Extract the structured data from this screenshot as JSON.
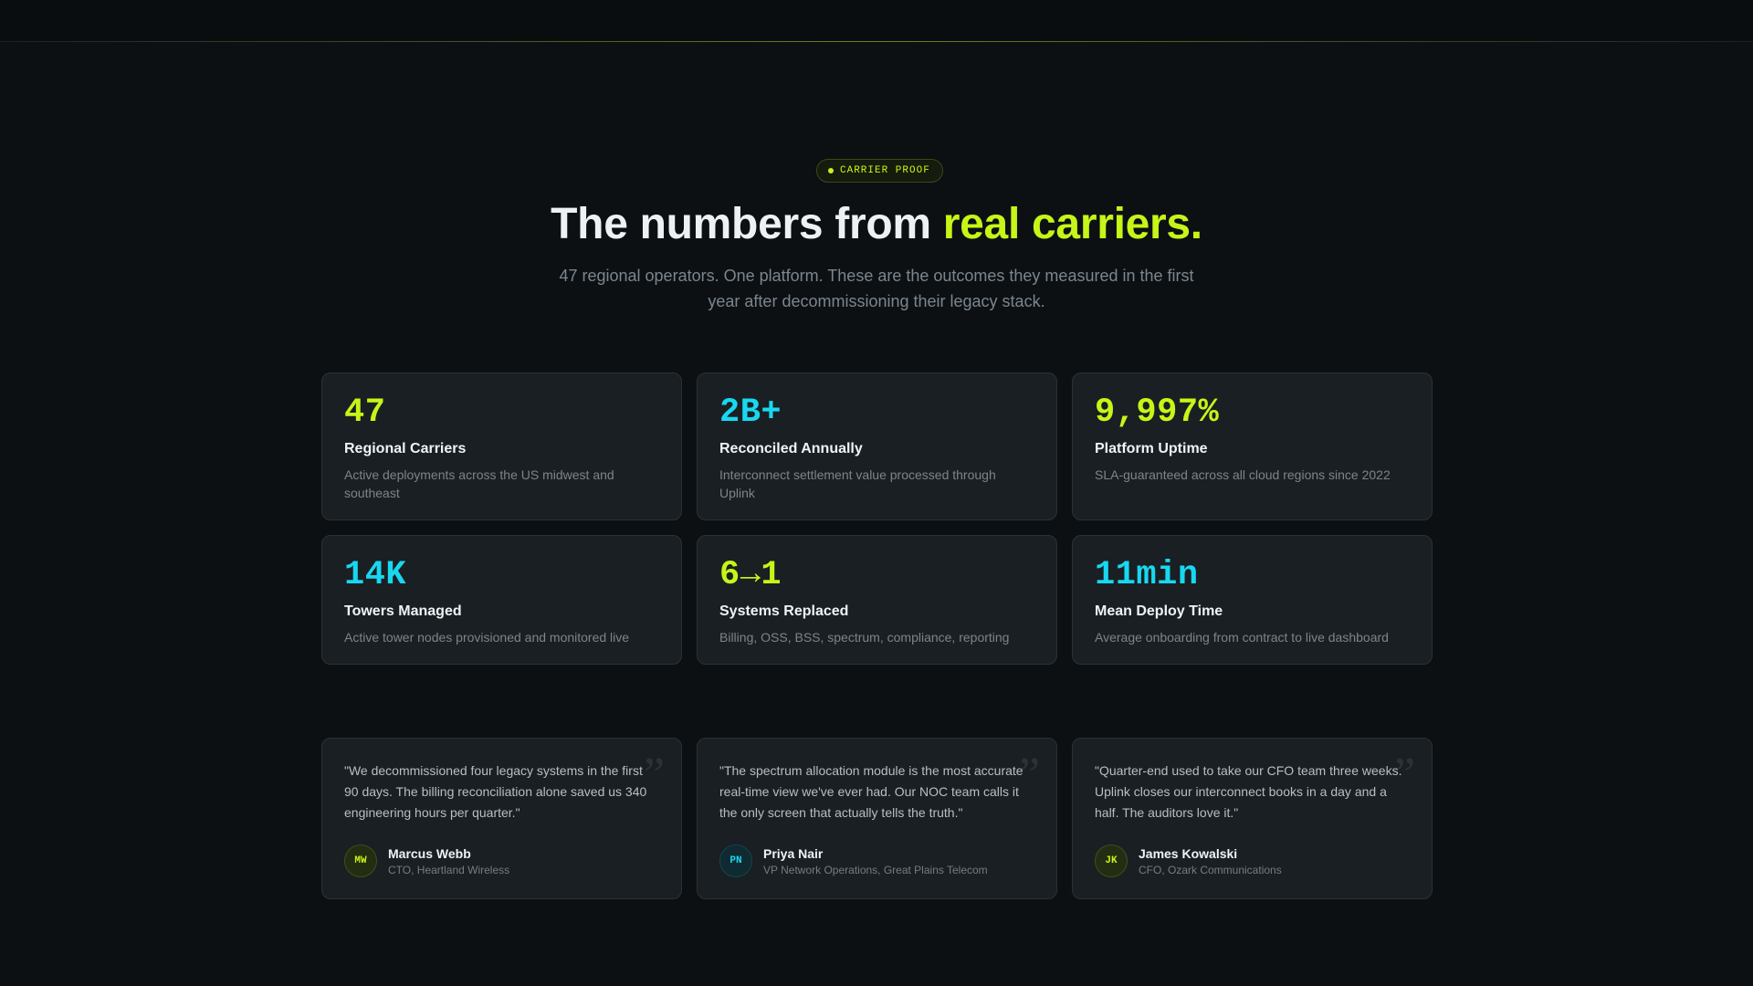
{
  "badge": {
    "label": "CARRIER PROOF"
  },
  "header": {
    "headline_main": "The numbers from ",
    "headline_accent": "real carriers.",
    "subtitle": "47 regional operators. One platform. These are the outcomes they measured in the first year after decommissioning their legacy stack."
  },
  "colors": {
    "accent_lime": "#c6f517",
    "accent_cyan": "#18d8f0",
    "background": "#0c1013",
    "card": "#1a1f23"
  },
  "stats": [
    {
      "value": "47",
      "title": "Regional Carriers",
      "description": "Active deployments across the US midwest and southeast",
      "accent": "lime"
    },
    {
      "value": "2B+",
      "title": "Reconciled Annually",
      "description": "Interconnect settlement value processed through Uplink",
      "accent": "cyan"
    },
    {
      "value": "9,997%",
      "title": "Platform Uptime",
      "description": "SLA-guaranteed across all cloud regions since 2022",
      "accent": "lime"
    },
    {
      "value": "14K",
      "title": "Towers Managed",
      "description": "Active tower nodes provisioned and monitored live",
      "accent": "cyan"
    },
    {
      "value": "6→1",
      "title": "Systems Replaced",
      "description": "Billing, OSS, BSS, spectrum, compliance, reporting",
      "accent": "lime"
    },
    {
      "value": "11min",
      "title": "Mean Deploy Time",
      "description": "Average onboarding from contract to live dashboard",
      "accent": "cyan"
    }
  ],
  "testimonials": [
    {
      "quote": "\"We decommissioned four legacy systems in the first 90 days. The billing reconciliation alone saved us 340 engineering hours per quarter.\"",
      "initials": "MW",
      "name": "Marcus Webb",
      "role": "CTO, Heartland Wireless",
      "quote_mark": "”"
    },
    {
      "quote": "\"The spectrum allocation module is the most accurate real-time view we've ever had. Our NOC team calls it the only screen that actually tells the truth.\"",
      "initials": "PN",
      "name": "Priya Nair",
      "role": "VP Network Operations, Great Plains Telecom",
      "quote_mark": "”"
    },
    {
      "quote": "\"Quarter-end used to take our CFO team three weeks. Uplink closes our interconnect books in a day and a half. The auditors love it.\"",
      "initials": "JK",
      "name": "James Kowalski",
      "role": "CFO, Ozark Communications",
      "quote_mark": "”"
    }
  ]
}
